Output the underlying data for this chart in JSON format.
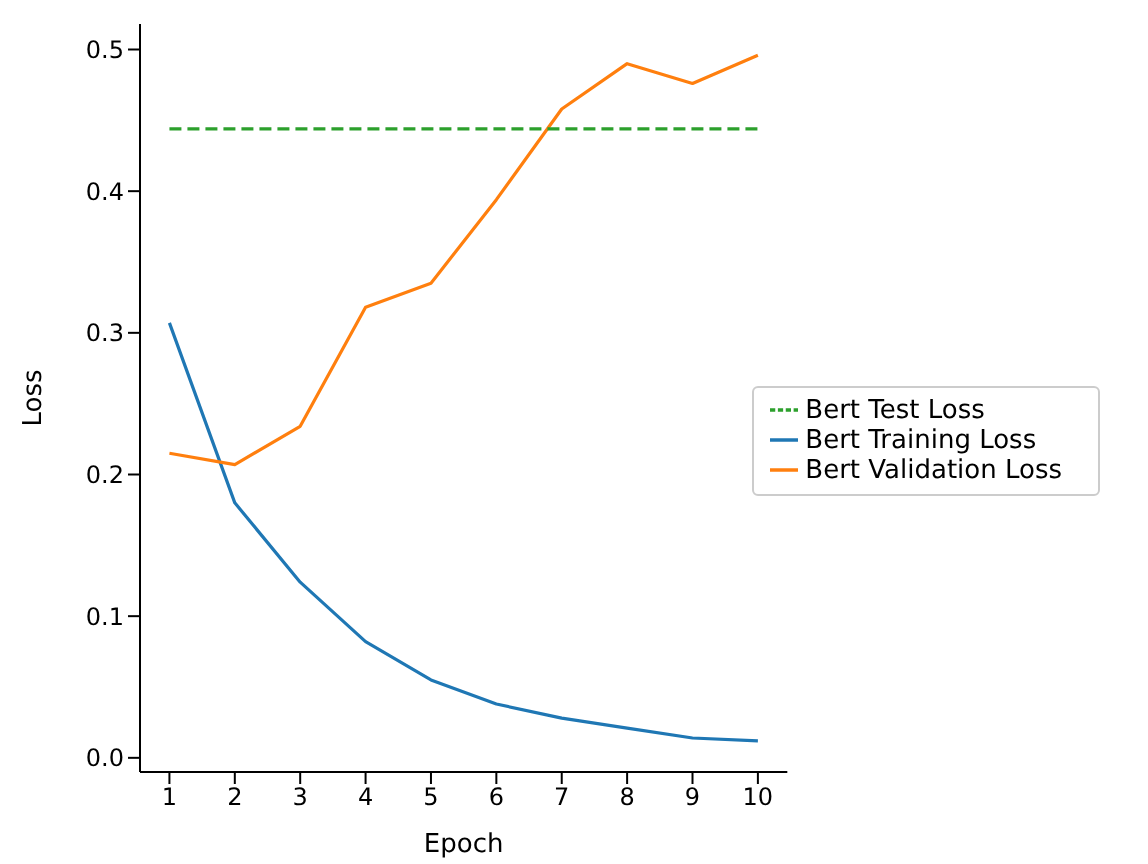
{
  "chart_data": {
    "type": "line",
    "xlabel": "Epoch",
    "ylabel": "Loss",
    "x": [
      1,
      2,
      3,
      4,
      5,
      6,
      7,
      8,
      9,
      10
    ],
    "xlim": [
      0.55,
      10.45
    ],
    "xticks": [
      1,
      2,
      3,
      4,
      5,
      6,
      7,
      8,
      9,
      10
    ],
    "ylim": [
      -0.01,
      0.518
    ],
    "yticks": [
      {
        "value": 0,
        "label": "0.0"
      },
      0.1,
      0.2,
      0.3,
      0.4,
      0.5
    ],
    "grid": false,
    "legend": "right",
    "marker": "none",
    "series": [
      {
        "name": "Bert Training Loss",
        "color": "#1f77b4",
        "line_style": "solid",
        "values": [
          0.307,
          0.18,
          0.124,
          0.082,
          0.055,
          0.038,
          0.028,
          0.021,
          0.014,
          0.012
        ]
      },
      {
        "name": "Bert Validation Loss",
        "color": "#ff7f0e",
        "line_style": "solid",
        "values": [
          0.215,
          0.207,
          0.234,
          0.318,
          0.335,
          0.394,
          0.458,
          0.49,
          0.476,
          0.496
        ]
      },
      {
        "name": "Bert Test Loss",
        "color": "#2ca02c",
        "line_style": "dashed",
        "values": [
          0.444,
          0.444,
          0.444,
          0.444,
          0.444,
          0.444,
          0.444,
          0.444,
          0.444,
          0.444
        ]
      }
    ]
  }
}
